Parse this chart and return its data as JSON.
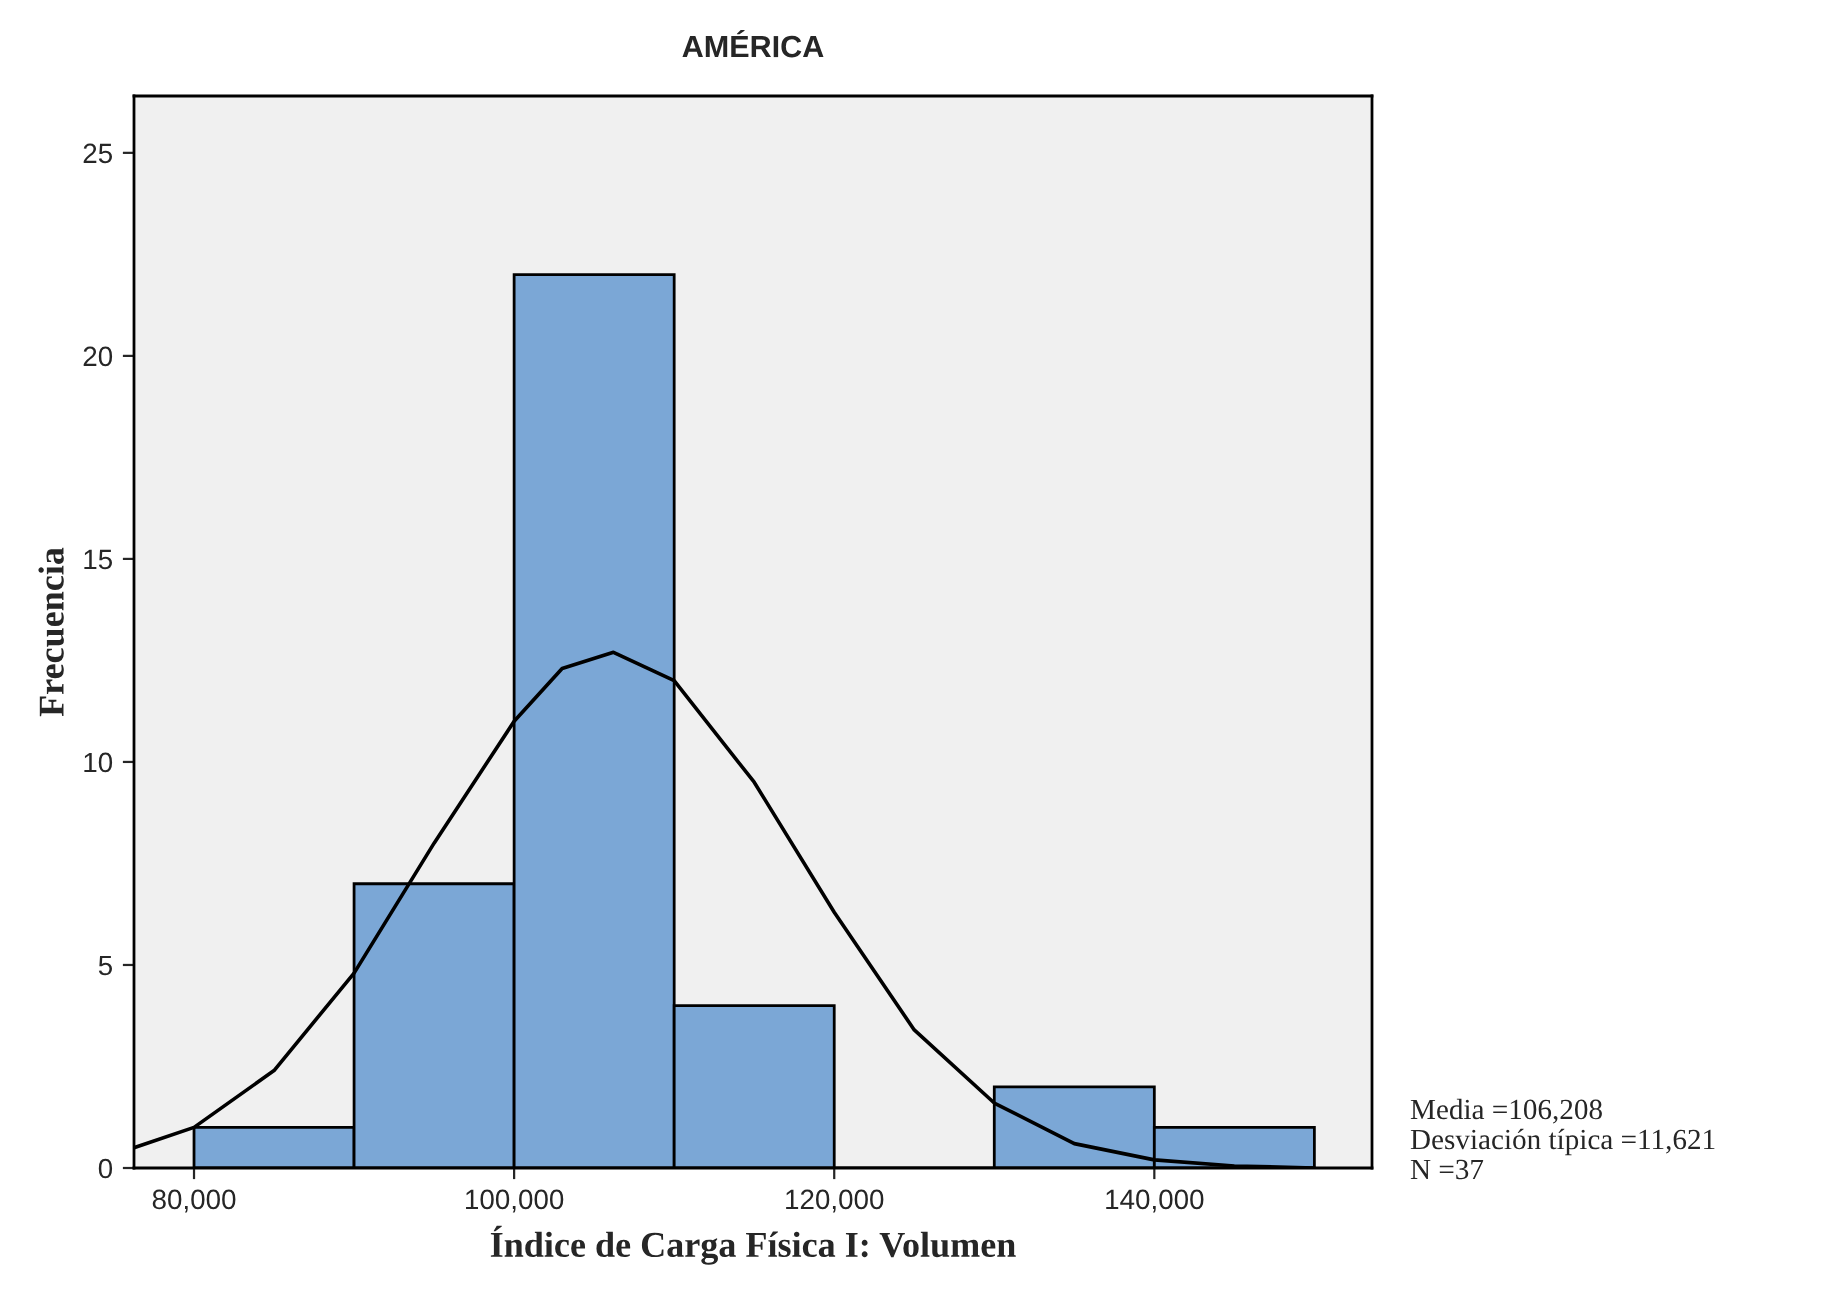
{
  "chart_data": {
    "type": "histogram",
    "title": "AMÉRICA",
    "xlabel": "Índice de Carga Física I: Volumen",
    "ylabel": "Frecuencia",
    "bins": [
      80000,
      90000,
      100000,
      110000,
      120000,
      130000,
      140000,
      150000
    ],
    "values": [
      1,
      7,
      22,
      4,
      0,
      2,
      1
    ],
    "color": "#7ba7d6",
    "series": [
      {
        "type": "line",
        "color": "#000000",
        "x": [
          76250,
          80000,
          85000,
          90000,
          95000,
          100000,
          103000,
          106208,
          110000,
          115000,
          120000,
          125000,
          130000,
          135000,
          140000,
          145000,
          150000
        ],
        "values": [
          0.5,
          1.0,
          2.4,
          4.8,
          8.0,
          11.0,
          12.3,
          12.7,
          12.0,
          9.5,
          6.3,
          3.4,
          1.6,
          0.6,
          0.2,
          0.05,
          0.0
        ]
      }
    ],
    "xlim": [
      76250,
      153600
    ],
    "ylim": [
      0,
      26.4
    ],
    "xticks": [
      {
        "value": 80000,
        "label": "80,000"
      },
      {
        "value": 100000,
        "label": "100,000"
      },
      {
        "value": 120000,
        "label": "120,000"
      },
      {
        "value": 140000,
        "label": "140,000"
      }
    ],
    "yticks": [
      0,
      5,
      10,
      15,
      20,
      25
    ],
    "annotations": [
      "Media =106,208",
      "Desviación típica =11,621",
      "N =37"
    ]
  }
}
